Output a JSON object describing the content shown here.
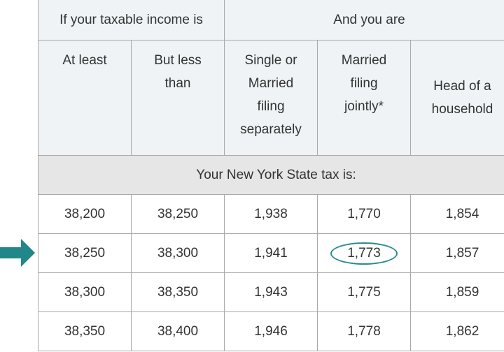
{
  "header": {
    "group1": "If your taxable income is",
    "group2": "And you are",
    "columns": [
      "At least",
      "But less than",
      "Single or Married filing separately",
      "Married filing jointly*",
      "Head of a household"
    ],
    "subheader": "Your New York State tax is:"
  },
  "rows": [
    [
      "38,200",
      "38,250",
      "1,938",
      "1,770",
      "1,854"
    ],
    [
      "38,250",
      "38,300",
      "1,941",
      "1,773",
      "1,857"
    ],
    [
      "38,300",
      "38,350",
      "1,943",
      "1,775",
      "1,859"
    ],
    [
      "38,350",
      "38,400",
      "1,946",
      "1,778",
      "1,862"
    ]
  ],
  "highlight": {
    "row": 1,
    "column": 3,
    "color": "#2a8c8c"
  },
  "arrow": {
    "icon": "arrow-right-icon",
    "color": "#21878a"
  }
}
